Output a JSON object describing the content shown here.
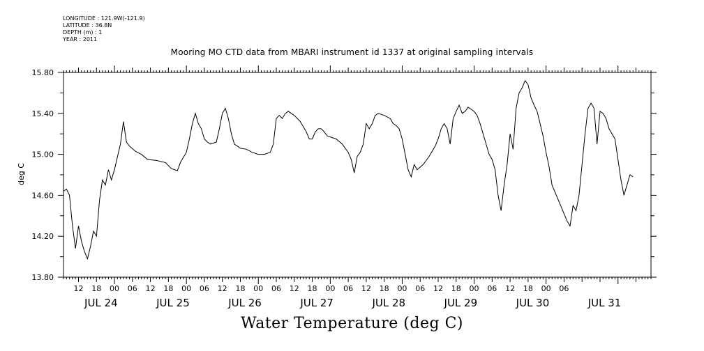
{
  "meta": {
    "longitude": "LONGITUDE : 121.9W(-121.9)",
    "latitude": "LATITUDE : 36.8N",
    "depth": "DEPTH (m) : 1",
    "year": "YEAR : 2011"
  },
  "chart_data": {
    "type": "line",
    "title": "Mooring MO CTD data from MBARI instrument id 1337 at original sampling intervals",
    "xlabel": "",
    "ylabel": "deg C",
    "bottom_title": "Water Temperature (deg C)",
    "ylim": [
      13.8,
      15.8
    ],
    "xlim": [
      "2011-07-23T07:00",
      "2011-07-31T11:00"
    ],
    "y_ticks": [
      "13.80",
      "14.20",
      "14.60",
      "15.00",
      "15.40",
      "15.80"
    ],
    "hour_tick_labels": [
      "12",
      "18",
      "00",
      "06",
      "12",
      "18",
      "00",
      "06",
      "12",
      "18",
      "00",
      "06",
      "12",
      "18",
      "00",
      "06",
      "12",
      "18",
      "00",
      "06",
      "12",
      "18",
      "00",
      "06",
      "12",
      "18",
      "00",
      "06"
    ],
    "date_labels": [
      "JUL 24",
      "JUL 25",
      "JUL 26",
      "JUL 27",
      "JUL 28",
      "JUL 29",
      "JUL 30",
      "JUL 31"
    ],
    "grid": false,
    "series": [
      {
        "values": [
          [
            "2011-07-23T07:00",
            14.64
          ],
          [
            "2011-07-23T08:00",
            14.66
          ],
          [
            "2011-07-23T09:00",
            14.6
          ],
          [
            "2011-07-23T10:00",
            14.3
          ],
          [
            "2011-07-23T11:00",
            14.08
          ],
          [
            "2011-07-23T12:00",
            14.3
          ],
          [
            "2011-07-23T13:00",
            14.15
          ],
          [
            "2011-07-23T14:00",
            14.05
          ],
          [
            "2011-07-23T15:00",
            13.98
          ],
          [
            "2011-07-23T16:00",
            14.1
          ],
          [
            "2011-07-23T17:00",
            14.25
          ],
          [
            "2011-07-23T18:00",
            14.2
          ],
          [
            "2011-07-23T19:00",
            14.55
          ],
          [
            "2011-07-23T20:00",
            14.75
          ],
          [
            "2011-07-23T21:00",
            14.7
          ],
          [
            "2011-07-23T22:00",
            14.85
          ],
          [
            "2011-07-23T23:00",
            14.75
          ],
          [
            "2011-07-24T00:00",
            14.85
          ],
          [
            "2011-07-24T02:00",
            15.1
          ],
          [
            "2011-07-24T03:00",
            15.32
          ],
          [
            "2011-07-24T04:00",
            15.12
          ],
          [
            "2011-07-24T05:00",
            15.08
          ],
          [
            "2011-07-24T07:00",
            15.03
          ],
          [
            "2011-07-24T09:00",
            15.0
          ],
          [
            "2011-07-24T11:00",
            14.95
          ],
          [
            "2011-07-24T14:00",
            14.94
          ],
          [
            "2011-07-24T17:00",
            14.92
          ],
          [
            "2011-07-24T19:00",
            14.86
          ],
          [
            "2011-07-24T21:00",
            14.84
          ],
          [
            "2011-07-24T22:00",
            14.92
          ],
          [
            "2011-07-25T00:00",
            15.02
          ],
          [
            "2011-07-25T01:00",
            15.15
          ],
          [
            "2011-07-25T02:00",
            15.3
          ],
          [
            "2011-07-25T03:00",
            15.4
          ],
          [
            "2011-07-25T04:00",
            15.3
          ],
          [
            "2011-07-25T05:00",
            15.25
          ],
          [
            "2011-07-25T06:00",
            15.15
          ],
          [
            "2011-07-25T07:00",
            15.12
          ],
          [
            "2011-07-25T08:00",
            15.1
          ],
          [
            "2011-07-25T10:00",
            15.12
          ],
          [
            "2011-07-25T11:00",
            15.25
          ],
          [
            "2011-07-25T12:00",
            15.4
          ],
          [
            "2011-07-25T13:00",
            15.45
          ],
          [
            "2011-07-25T14:00",
            15.35
          ],
          [
            "2011-07-25T15:00",
            15.2
          ],
          [
            "2011-07-25T16:00",
            15.1
          ],
          [
            "2011-07-25T18:00",
            15.06
          ],
          [
            "2011-07-25T20:00",
            15.05
          ],
          [
            "2011-07-25T22:00",
            15.02
          ],
          [
            "2011-07-26T00:00",
            15.0
          ],
          [
            "2011-07-26T02:00",
            15.0
          ],
          [
            "2011-07-26T04:00",
            15.02
          ],
          [
            "2011-07-26T05:00",
            15.1
          ],
          [
            "2011-07-26T06:00",
            15.35
          ],
          [
            "2011-07-26T07:00",
            15.38
          ],
          [
            "2011-07-26T08:00",
            15.35
          ],
          [
            "2011-07-26T09:00",
            15.4
          ],
          [
            "2011-07-26T10:00",
            15.42
          ],
          [
            "2011-07-26T11:00",
            15.4
          ],
          [
            "2011-07-26T12:00",
            15.38
          ],
          [
            "2011-07-26T14:00",
            15.32
          ],
          [
            "2011-07-26T16:00",
            15.22
          ],
          [
            "2011-07-26T17:00",
            15.15
          ],
          [
            "2011-07-26T18:00",
            15.15
          ],
          [
            "2011-07-26T19:00",
            15.22
          ],
          [
            "2011-07-26T20:00",
            15.25
          ],
          [
            "2011-07-26T21:00",
            15.25
          ],
          [
            "2011-07-26T22:00",
            15.22
          ],
          [
            "2011-07-26T23:00",
            15.18
          ],
          [
            "2011-07-27T02:00",
            15.15
          ],
          [
            "2011-07-27T04:00",
            15.1
          ],
          [
            "2011-07-27T06:00",
            15.02
          ],
          [
            "2011-07-27T07:00",
            14.95
          ],
          [
            "2011-07-27T08:00",
            14.82
          ],
          [
            "2011-07-27T09:00",
            14.98
          ],
          [
            "2011-07-27T10:00",
            15.02
          ],
          [
            "2011-07-27T11:00",
            15.1
          ],
          [
            "2011-07-27T12:00",
            15.3
          ],
          [
            "2011-07-27T13:00",
            15.25
          ],
          [
            "2011-07-27T14:00",
            15.3
          ],
          [
            "2011-07-27T15:00",
            15.38
          ],
          [
            "2011-07-27T16:00",
            15.4
          ],
          [
            "2011-07-27T18:00",
            15.38
          ],
          [
            "2011-07-27T20:00",
            15.35
          ],
          [
            "2011-07-27T21:00",
            15.3
          ],
          [
            "2011-07-27T22:00",
            15.28
          ],
          [
            "2011-07-27T23:00",
            15.25
          ],
          [
            "2011-07-28T00:00",
            15.15
          ],
          [
            "2011-07-28T01:00",
            15.0
          ],
          [
            "2011-07-28T02:00",
            14.85
          ],
          [
            "2011-07-28T03:00",
            14.78
          ],
          [
            "2011-07-28T04:00",
            14.9
          ],
          [
            "2011-07-28T05:00",
            14.85
          ],
          [
            "2011-07-28T07:00",
            14.9
          ],
          [
            "2011-07-28T09:00",
            14.98
          ],
          [
            "2011-07-28T11:00",
            15.08
          ],
          [
            "2011-07-28T12:00",
            15.15
          ],
          [
            "2011-07-28T13:00",
            15.25
          ],
          [
            "2011-07-28T14:00",
            15.3
          ],
          [
            "2011-07-28T15:00",
            15.25
          ],
          [
            "2011-07-28T16:00",
            15.1
          ],
          [
            "2011-07-28T17:00",
            15.35
          ],
          [
            "2011-07-28T18:00",
            15.42
          ],
          [
            "2011-07-28T19:00",
            15.48
          ],
          [
            "2011-07-28T20:00",
            15.4
          ],
          [
            "2011-07-28T21:00",
            15.42
          ],
          [
            "2011-07-28T22:00",
            15.46
          ],
          [
            "2011-07-29T00:00",
            15.42
          ],
          [
            "2011-07-29T01:00",
            15.38
          ],
          [
            "2011-07-29T02:00",
            15.3
          ],
          [
            "2011-07-29T03:00",
            15.2
          ],
          [
            "2011-07-29T04:00",
            15.1
          ],
          [
            "2011-07-29T05:00",
            15.0
          ],
          [
            "2011-07-29T06:00",
            14.95
          ],
          [
            "2011-07-29T07:00",
            14.85
          ],
          [
            "2011-07-29T08:00",
            14.6
          ],
          [
            "2011-07-29T09:00",
            14.45
          ],
          [
            "2011-07-29T10:00",
            14.7
          ],
          [
            "2011-07-29T11:00",
            14.9
          ],
          [
            "2011-07-29T12:00",
            15.2
          ],
          [
            "2011-07-29T13:00",
            15.05
          ],
          [
            "2011-07-29T14:00",
            15.45
          ],
          [
            "2011-07-29T15:00",
            15.6
          ],
          [
            "2011-07-29T16:00",
            15.65
          ],
          [
            "2011-07-29T17:00",
            15.72
          ],
          [
            "2011-07-29T18:00",
            15.68
          ],
          [
            "2011-07-29T19:00",
            15.55
          ],
          [
            "2011-07-29T20:00",
            15.48
          ],
          [
            "2011-07-29T21:00",
            15.42
          ],
          [
            "2011-07-29T22:00",
            15.3
          ],
          [
            "2011-07-29T23:00",
            15.18
          ],
          [
            "2011-07-30T00:00",
            15.02
          ],
          [
            "2011-07-30T01:00",
            14.88
          ],
          [
            "2011-07-30T02:00",
            14.7
          ],
          [
            "2011-07-30T07:00",
            14.35
          ],
          [
            "2011-07-30T08:00",
            14.3
          ],
          [
            "2011-07-30T09:00",
            14.5
          ],
          [
            "2011-07-30T10:00",
            14.45
          ],
          [
            "2011-07-30T11:00",
            14.6
          ],
          [
            "2011-07-30T12:00",
            14.9
          ],
          [
            "2011-07-30T13:00",
            15.2
          ],
          [
            "2011-07-30T14:00",
            15.45
          ],
          [
            "2011-07-30T15:00",
            15.5
          ],
          [
            "2011-07-30T16:00",
            15.45
          ],
          [
            "2011-07-30T17:00",
            15.1
          ],
          [
            "2011-07-30T18:00",
            15.42
          ],
          [
            "2011-07-30T19:00",
            15.4
          ],
          [
            "2011-07-30T20:00",
            15.35
          ],
          [
            "2011-07-30T21:00",
            15.25
          ],
          [
            "2011-07-30T22:00",
            15.2
          ],
          [
            "2011-07-30T23:00",
            15.15
          ],
          [
            "2011-07-31T00:00",
            14.95
          ],
          [
            "2011-07-31T01:00",
            14.75
          ],
          [
            "2011-07-31T02:00",
            14.6
          ],
          [
            "2011-07-31T03:00",
            14.7
          ],
          [
            "2011-07-31T04:00",
            14.8
          ],
          [
            "2011-07-31T05:00",
            14.78
          ]
        ]
      }
    ]
  }
}
